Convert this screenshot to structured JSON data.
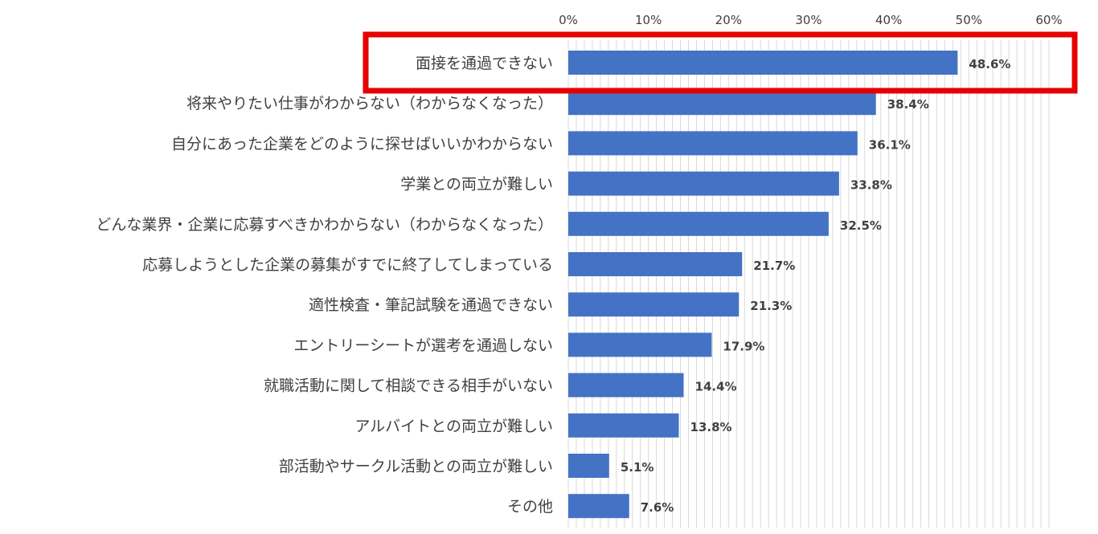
{
  "chart_data": {
    "type": "bar",
    "orientation": "horizontal",
    "categories": [
      "面接を通過できない",
      "将来やりたい仕事がわからない（わからなくなった）",
      "自分にあった企業をどのように探せばいいかわからない",
      "学業との両立が難しい",
      "どんな業界・企業に応募すべきかわからない（わからなくなった）",
      "応募しようとした企業の募集がすでに終了してしまっている",
      "適性検査・筆記試験を通過できない",
      "エントリーシートが選考を通過しない",
      "就職活動に関して相談できる相手がいない",
      "アルバイトとの両立が難しい",
      "部活動やサークル活動との両立が難しい",
      "その他"
    ],
    "values": [
      48.6,
      38.4,
      36.1,
      33.8,
      32.5,
      21.7,
      21.3,
      17.9,
      14.4,
      13.8,
      5.1,
      7.6
    ],
    "data_labels": [
      "48.6%",
      "38.4%",
      "36.1%",
      "33.8%",
      "32.5%",
      "21.7%",
      "21.3%",
      "17.9%",
      "14.4%",
      "13.8%",
      "5.1%",
      "7.6%"
    ],
    "x_ticks": [
      0,
      10,
      20,
      30,
      40,
      50,
      60
    ],
    "x_tick_labels": [
      "0%",
      "10%",
      "20%",
      "30%",
      "40%",
      "50%",
      "60%"
    ],
    "xlim": [
      0,
      60
    ],
    "x_axis_position": "top",
    "grid": true,
    "bar_color": "#4472c4",
    "highlight_color": "#e60000",
    "highlighted_category": "面接を通過できない",
    "title": "",
    "xlabel": "",
    "ylabel": ""
  }
}
